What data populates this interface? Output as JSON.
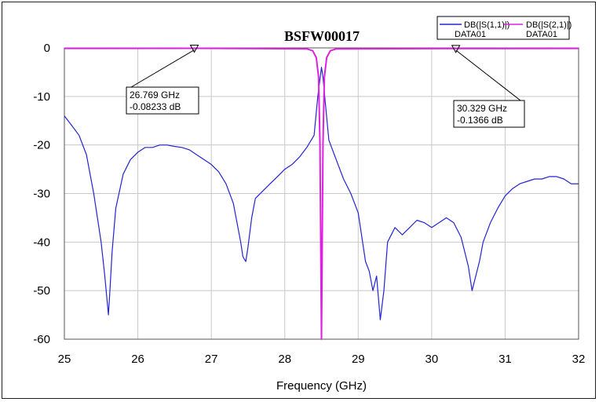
{
  "chart_data": {
    "type": "line",
    "title": "BSFW00017",
    "xlabel": "Frequency (GHz)",
    "ylabel": "",
    "xlim": [
      25,
      32
    ],
    "ylim": [
      -60,
      0
    ],
    "x_ticks": [
      "25",
      "26",
      "27",
      "28",
      "29",
      "30",
      "31",
      "32"
    ],
    "y_ticks": [
      "0",
      "-10",
      "-20",
      "-30",
      "-40",
      "-50",
      "-60"
    ],
    "grid": true,
    "legend_position": "top-right",
    "legend": [
      {
        "label": "DB(|S(1,1)|)",
        "sublabel": "DATA01",
        "color": "#2323d2"
      },
      {
        "label": "DB(|S(2,1)|)",
        "sublabel": "DATA01",
        "color": "#e020e0"
      }
    ],
    "markers": [
      {
        "x": 26.769,
        "y": -0.08233,
        "line1": "26.769 GHz",
        "line2": "-0.08233 dB"
      },
      {
        "x": 30.329,
        "y": -0.1366,
        "line1": "30.329 GHz",
        "line2": "-0.1366 dB"
      }
    ],
    "series": [
      {
        "key": "s11",
        "color": "#2323d2",
        "x": [
          25.0,
          25.1,
          25.2,
          25.3,
          25.4,
          25.5,
          25.55,
          25.6,
          25.62,
          25.65,
          25.7,
          25.8,
          25.9,
          26.0,
          26.1,
          26.2,
          26.3,
          26.4,
          26.5,
          26.6,
          26.7,
          26.8,
          26.9,
          27.0,
          27.1,
          27.2,
          27.3,
          27.4,
          27.43,
          27.47,
          27.5,
          27.55,
          27.6,
          27.7,
          27.8,
          27.9,
          28.0,
          28.1,
          28.2,
          28.3,
          28.4,
          28.45,
          28.5,
          28.52,
          28.55,
          28.6,
          28.7,
          28.8,
          28.9,
          29.0,
          29.1,
          29.15,
          29.2,
          29.25,
          29.3,
          29.35,
          29.4,
          29.5,
          29.6,
          29.7,
          29.8,
          29.9,
          30.0,
          30.1,
          30.2,
          30.3,
          30.4,
          30.5,
          30.55,
          30.6,
          30.65,
          30.7,
          30.8,
          30.9,
          31.0,
          31.1,
          31.2,
          31.3,
          31.4,
          31.5,
          31.6,
          31.7,
          31.8,
          31.9,
          32.0
        ],
        "y": [
          -14,
          -16,
          -18,
          -22,
          -30,
          -40,
          -47,
          -55,
          -50,
          -42,
          -33,
          -26,
          -23,
          -21.5,
          -20.5,
          -20.5,
          -20,
          -20,
          -20.3,
          -20.5,
          -21,
          -22,
          -23,
          -24,
          -25.5,
          -28,
          -32,
          -40,
          -43,
          -44,
          -41,
          -35,
          -31,
          -29.5,
          -28,
          -26.5,
          -25,
          -24,
          -22.5,
          -20.5,
          -18,
          -10,
          -4,
          -6,
          -11,
          -19,
          -23,
          -27,
          -30,
          -34,
          -44,
          -46,
          -50,
          -47,
          -56,
          -50,
          -40,
          -37,
          -38.5,
          -37,
          -35.5,
          -36,
          -37,
          -36,
          -35,
          -36,
          -39,
          -45,
          -50,
          -47,
          -44,
          -40,
          -36,
          -33,
          -30.5,
          -29,
          -28,
          -27.5,
          -27,
          -27,
          -26.5,
          -26.5,
          -27,
          -28,
          -28
        ]
      },
      {
        "key": "s21",
        "color": "#e020e0",
        "x": [
          25.0,
          26.769,
          28.3,
          28.38,
          28.43,
          28.46,
          28.48,
          28.5,
          28.52,
          28.54,
          28.57,
          28.62,
          28.7,
          30.329,
          32.0
        ],
        "y": [
          -0.1,
          -0.08233,
          -0.2,
          -0.6,
          -2,
          -6,
          -20,
          -60,
          -20,
          -6,
          -2,
          -0.6,
          -0.2,
          -0.1366,
          -0.1
        ]
      }
    ]
  }
}
